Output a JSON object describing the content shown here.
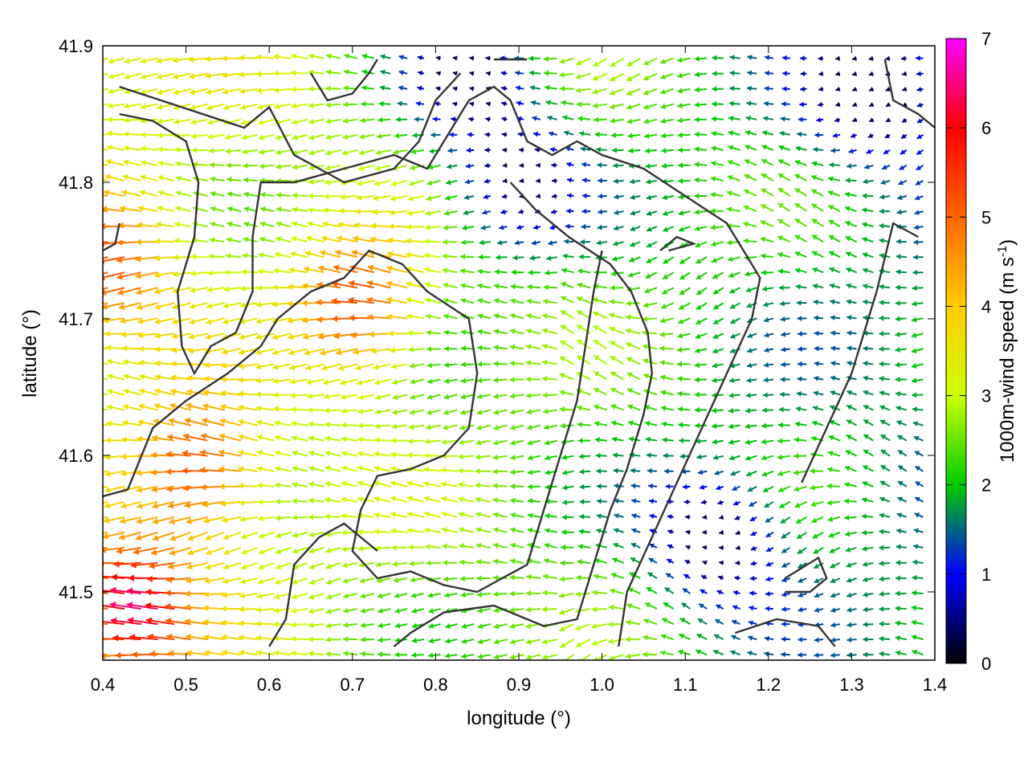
{
  "chart_data": {
    "type": "quiver",
    "xlabel": "longitude (°)",
    "ylabel": "latitude (°)",
    "xlim": [
      0.4,
      1.4
    ],
    "ylim": [
      41.45,
      41.9
    ],
    "x_ticks": [
      "0.4",
      "0.5",
      "0.6",
      "0.7",
      "0.8",
      "0.9",
      "1.0",
      "1.1",
      "1.2",
      "1.3",
      "1.4"
    ],
    "y_ticks": [
      "41.5",
      "41.6",
      "41.7",
      "41.8",
      "41.9"
    ],
    "colorbar": {
      "label_main": "1000m-wind speed (m s",
      "label_sup": "-1",
      "label_end": ")",
      "min": 0,
      "max": 7,
      "ticks": [
        "0",
        "1",
        "2",
        "3",
        "4",
        "5",
        "6",
        "7"
      ],
      "colors": [
        "#000000",
        "#0000ff",
        "#00cc00",
        "#ccff00",
        "#ffcc00",
        "#ff6600",
        "#ff0000",
        "#ff00ff"
      ]
    },
    "wind_field": {
      "grid_step_lon": 0.02,
      "grid_step_lat": 0.0112,
      "dominant_direction": "from east",
      "high_speed_regions": [
        {
          "lon": 0.45,
          "lat": 41.49,
          "speed": 6.8
        },
        {
          "lon": 0.53,
          "lat": 41.59,
          "speed": 6.0
        },
        {
          "lon": 0.72,
          "lat": 41.71,
          "speed": 6.2
        },
        {
          "lon": 0.42,
          "lat": 41.74,
          "speed": 5.5
        }
      ],
      "calm_regions": [
        {
          "lon": 0.9,
          "lat": 41.8,
          "speed": 0.6
        },
        {
          "lon": 1.14,
          "lat": 41.54,
          "speed": 0.7
        },
        {
          "lon": 0.84,
          "lat": 41.88,
          "speed": 0.7
        },
        {
          "lon": 1.33,
          "lat": 41.87,
          "speed": 0.8
        }
      ]
    },
    "contours": [
      [
        [
          0.42,
          41.87
        ],
        [
          0.47,
          41.86
        ],
        [
          0.52,
          41.85
        ],
        [
          0.57,
          41.84
        ],
        [
          0.6,
          41.855
        ],
        [
          0.63,
          41.82
        ],
        [
          0.69,
          41.8
        ],
        [
          0.75,
          41.81
        ],
        [
          0.78,
          41.83
        ],
        [
          0.8,
          41.86
        ],
        [
          0.83,
          41.88
        ]
      ],
      [
        [
          0.42,
          41.85
        ],
        [
          0.46,
          41.845
        ],
        [
          0.5,
          41.83
        ],
        [
          0.515,
          41.8
        ],
        [
          0.51,
          41.76
        ],
        [
          0.49,
          41.72
        ],
        [
          0.495,
          41.68
        ],
        [
          0.51,
          41.66
        ],
        [
          0.53,
          41.68
        ],
        [
          0.56,
          41.69
        ],
        [
          0.58,
          41.72
        ],
        [
          0.58,
          41.76
        ],
        [
          0.59,
          41.8
        ],
        [
          0.63,
          41.8
        ],
        [
          0.69,
          41.81
        ],
        [
          0.75,
          41.82
        ],
        [
          0.79,
          41.81
        ],
        [
          0.82,
          41.84
        ],
        [
          0.84,
          41.86
        ],
        [
          0.87,
          41.87
        ],
        [
          0.89,
          41.86
        ],
        [
          0.91,
          41.83
        ],
        [
          0.94,
          41.82
        ],
        [
          0.97,
          41.83
        ],
        [
          1.0,
          41.82
        ],
        [
          1.05,
          41.81
        ],
        [
          1.1,
          41.79
        ],
        [
          1.15,
          41.77
        ],
        [
          1.19,
          41.73
        ],
        [
          1.18,
          41.7
        ],
        [
          1.15,
          41.66
        ],
        [
          1.12,
          41.62
        ],
        [
          1.09,
          41.58
        ],
        [
          1.06,
          41.54
        ],
        [
          1.03,
          41.5
        ],
        [
          1.02,
          41.46
        ]
      ],
      [
        [
          0.87,
          41.89
        ],
        [
          0.91,
          41.89
        ]
      ],
      [
        [
          0.65,
          41.88
        ],
        [
          0.67,
          41.86
        ],
        [
          0.7,
          41.865
        ],
        [
          0.72,
          41.88
        ],
        [
          0.73,
          41.89
        ]
      ],
      [
        [
          0.89,
          41.8
        ],
        [
          0.92,
          41.78
        ],
        [
          0.96,
          41.76
        ],
        [
          1.01,
          41.74
        ],
        [
          1.035,
          41.72
        ],
        [
          1.055,
          41.69
        ],
        [
          1.06,
          41.66
        ],
        [
          1.05,
          41.63
        ],
        [
          1.03,
          41.59
        ],
        [
          1.01,
          41.56
        ],
        [
          0.99,
          41.52
        ],
        [
          0.97,
          41.48
        ],
        [
          0.93,
          41.475
        ],
        [
          0.87,
          41.49
        ],
        [
          0.81,
          41.485
        ],
        [
          0.77,
          41.47
        ],
        [
          0.75,
          41.46
        ]
      ],
      [
        [
          0.4,
          41.57
        ],
        [
          0.43,
          41.575
        ],
        [
          0.46,
          41.62
        ],
        [
          0.5,
          41.64
        ],
        [
          0.55,
          41.66
        ],
        [
          0.59,
          41.68
        ],
        [
          0.61,
          41.7
        ],
        [
          0.65,
          41.72
        ],
        [
          0.69,
          41.73
        ],
        [
          0.72,
          41.75
        ],
        [
          0.76,
          41.74
        ],
        [
          0.79,
          41.72
        ],
        [
          0.84,
          41.7
        ],
        [
          0.85,
          41.66
        ],
        [
          0.84,
          41.62
        ],
        [
          0.81,
          41.6
        ],
        [
          0.77,
          41.59
        ],
        [
          0.73,
          41.585
        ],
        [
          0.71,
          41.56
        ],
        [
          0.7,
          41.53
        ],
        [
          0.73,
          41.51
        ],
        [
          0.77,
          41.515
        ],
        [
          0.81,
          41.505
        ],
        [
          0.85,
          41.5
        ],
        [
          0.88,
          41.51
        ],
        [
          0.91,
          41.52
        ],
        [
          0.93,
          41.56
        ],
        [
          0.95,
          41.6
        ],
        [
          0.97,
          41.64
        ],
        [
          0.98,
          41.68
        ],
        [
          0.99,
          41.72
        ],
        [
          1.0,
          41.75
        ]
      ],
      [
        [
          0.6,
          41.46
        ],
        [
          0.62,
          41.48
        ],
        [
          0.63,
          41.52
        ],
        [
          0.66,
          41.54
        ],
        [
          0.69,
          41.55
        ],
        [
          0.71,
          41.54
        ],
        [
          0.73,
          41.53
        ]
      ],
      [
        [
          1.07,
          41.75
        ],
        [
          1.09,
          41.76
        ],
        [
          1.11,
          41.755
        ],
        [
          1.08,
          41.75
        ]
      ],
      [
        [
          1.16,
          41.47
        ],
        [
          1.21,
          41.48
        ],
        [
          1.26,
          41.475
        ],
        [
          1.28,
          41.46
        ]
      ],
      [
        [
          1.22,
          41.51
        ],
        [
          1.26,
          41.525
        ],
        [
          1.27,
          41.51
        ],
        [
          1.25,
          41.5
        ],
        [
          1.22,
          41.5
        ]
      ],
      [
        [
          1.24,
          41.58
        ],
        [
          1.27,
          41.62
        ],
        [
          1.3,
          41.66
        ],
        [
          1.33,
          41.72
        ],
        [
          1.35,
          41.77
        ],
        [
          1.38,
          41.76
        ]
      ],
      [
        [
          1.34,
          41.89
        ],
        [
          1.35,
          41.86
        ],
        [
          1.38,
          41.85
        ],
        [
          1.4,
          41.84
        ]
      ],
      [
        [
          0.4,
          41.75
        ],
        [
          0.415,
          41.755
        ],
        [
          0.42,
          41.77
        ]
      ]
    ]
  }
}
